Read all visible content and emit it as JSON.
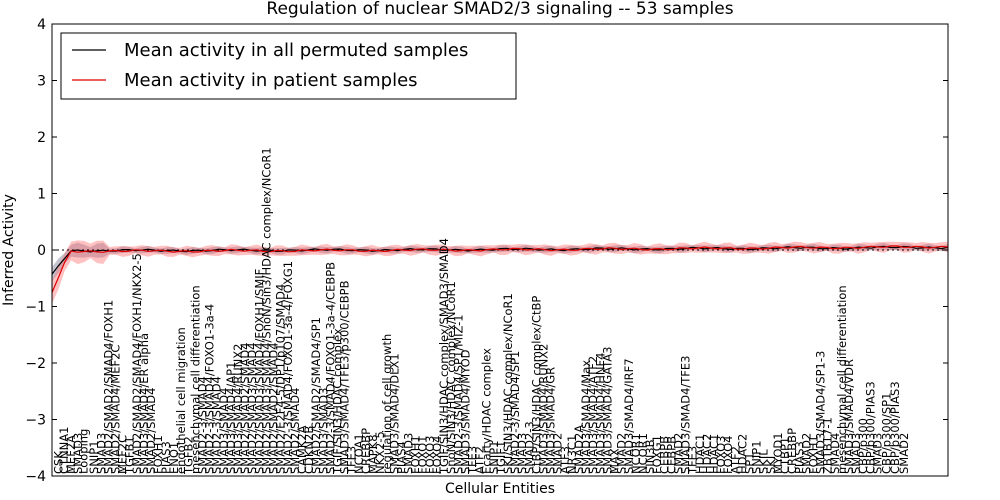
{
  "chart_data": {
    "type": "line",
    "title": "Regulation of nuclear SMAD2/3 signaling -- 53 samples",
    "xlabel": "Cellular Entities",
    "ylabel": "Inferred Activity",
    "ylim": [
      -4,
      4
    ],
    "yticks": [
      -4,
      -3,
      -2,
      -1,
      0,
      1,
      2,
      3,
      4
    ],
    "legend_position": "top-left",
    "series": [
      {
        "name": "Mean activity in all permuted samples",
        "color": "#000000",
        "start": -0.45,
        "mid": -0.01,
        "end": 0.05,
        "band": 0.05,
        "band_color": "#6b6b8a"
      },
      {
        "name": "Mean activity in patient samples",
        "color": "#e00000",
        "start": -0.75,
        "mid": -0.02,
        "end": 0.06,
        "band": 0.08,
        "band_color": "#ff6666"
      }
    ],
    "entity_labels": [
      {
        "pos": 0.003,
        "text": "CSK"
      },
      {
        "pos": 0.009,
        "text": "CTNNA1"
      },
      {
        "pos": 0.017,
        "text": "MEF2A"
      },
      {
        "pos": 0.025,
        "text": "SMAD3"
      },
      {
        "pos": 0.031,
        "text": "Looping"
      },
      {
        "pos": 0.043,
        "text": "SNIP1"
      },
      {
        "pos": 0.051,
        "text": "SMAD3"
      },
      {
        "pos": 0.059,
        "text": "SMAD2/SMAD2/SMAD4/FOXH1"
      },
      {
        "pos": 0.067,
        "text": "SMAD2/SMAD4/MEF2C"
      },
      {
        "pos": 0.075,
        "text": "MEF2C"
      },
      {
        "pos": 0.083,
        "text": "TGFB1"
      },
      {
        "pos": 0.091,
        "text": "SMAD2/SMAD2/SMAD4/FOXH1/NKX2-5"
      },
      {
        "pos": 0.099,
        "text": "SMAD3/SMAD4/ER alpha"
      },
      {
        "pos": 0.107,
        "text": "SMAD2/SMAD4"
      },
      {
        "pos": 0.115,
        "text": "FOXH1"
      },
      {
        "pos": 0.124,
        "text": "PIAS3"
      },
      {
        "pos": 0.133,
        "text": "ENO1"
      },
      {
        "pos": 0.141,
        "text": "endothelial cell migration"
      },
      {
        "pos": 0.149,
        "text": "TGFB2"
      },
      {
        "pos": 0.157,
        "text": "mesenchymal cell differentiation"
      },
      {
        "pos": 0.165,
        "text": "SMAD2-3/SMAD4"
      },
      {
        "pos": 0.173,
        "text": "SMAD2-3/SMAD4/FOXO1-3a-4"
      },
      {
        "pos": 0.181,
        "text": "SMAD2-3/SMAD4"
      },
      {
        "pos": 0.189,
        "text": "SMAD3/SMAD4"
      },
      {
        "pos": 0.197,
        "text": "SMAD3/SMAD4/AP1"
      },
      {
        "pos": 0.205,
        "text": "SMAD3/SMAD4/RUNX2"
      },
      {
        "pos": 0.213,
        "text": "SMAD2/SMAD2/SMAD4"
      },
      {
        "pos": 0.221,
        "text": "SMAD2/SMAD3/SMAD4"
      },
      {
        "pos": 0.229,
        "text": "SMAD2/SMAD3/SMAD4/FOXH1/SMIF"
      },
      {
        "pos": 0.237,
        "text": "SMAD2/SMAD3/SMAD4/SnoN/Sin3/HDAC complex/NCoR1"
      },
      {
        "pos": 0.245,
        "text": "SMAD2/SMAD2/SMAD4"
      },
      {
        "pos": 0.253,
        "text": "SMAD2/E2F4-5/DP1/p107/SMAD4"
      },
      {
        "pos": 0.261,
        "text": "SMAD2-3/SMAD4/FOXO1-3a-4/FOXG1"
      },
      {
        "pos": 0.269,
        "text": "SMAD2/SMAD4"
      },
      {
        "pos": 0.277,
        "text": "CAMK2A"
      },
      {
        "pos": 0.285,
        "text": "CDKN2B"
      },
      {
        "pos": 0.293,
        "text": "SMAD2/SMAD2/SMAD4/SP1"
      },
      {
        "pos": 0.301,
        "text": "SMAD3/SMAD3"
      },
      {
        "pos": 0.309,
        "text": "SMAD2-3/SMAD4/FOXO1-3a-4/CEBPB"
      },
      {
        "pos": 0.317,
        "text": "TGIF/SIN3/HDAC complex"
      },
      {
        "pos": 0.325,
        "text": "SMAD3/SMAD4/TFE3/p300/CEBPB"
      },
      {
        "pos": 0.333,
        "text": "TFE3"
      },
      {
        "pos": 0.341,
        "text": "NCOA1"
      },
      {
        "pos": 0.349,
        "text": "CREBBP"
      },
      {
        "pos": 0.357,
        "text": "MAPK8"
      },
      {
        "pos": 0.365,
        "text": "NKX2-5"
      },
      {
        "pos": 0.373,
        "text": "regulation of cell growth"
      },
      {
        "pos": 0.381,
        "text": "SMAD3/SMAD4/DLX1"
      },
      {
        "pos": 0.389,
        "text": "PIAS4"
      },
      {
        "pos": 0.397,
        "text": "SMAD3"
      },
      {
        "pos": 0.405,
        "text": "FOXH1"
      },
      {
        "pos": 0.413,
        "text": "FOXO1"
      },
      {
        "pos": 0.421,
        "text": "FOXO3"
      },
      {
        "pos": 0.429,
        "text": "FOXO4"
      },
      {
        "pos": 0.437,
        "text": "TGIF/SIN3/HDAC complex/SMAD3/SMAD4"
      },
      {
        "pos": 0.445,
        "text": "SnoN/SIN3/HDAC complex/NCoR1"
      },
      {
        "pos": 0.453,
        "text": "SMAD2-3/SMAD4/SP1/MIZ-1"
      },
      {
        "pos": 0.461,
        "text": "SMAD3/SMAD4/MYOD"
      },
      {
        "pos": 0.469,
        "text": "TFE3"
      },
      {
        "pos": 0.477,
        "text": "ATF2"
      },
      {
        "pos": 0.485,
        "text": "Ecarty/HDAC complex"
      },
      {
        "pos": 0.493,
        "text": "SNIP1"
      },
      {
        "pos": 0.501,
        "text": "TGIF1"
      },
      {
        "pos": 0.509,
        "text": "SKI/SIN3/HDAC complex/NCoR1"
      },
      {
        "pos": 0.517,
        "text": "SMAD2-3/SMAD4/SP1"
      },
      {
        "pos": 0.525,
        "text": "SMAD3"
      },
      {
        "pos": 0.533,
        "text": "SMAD2-3"
      },
      {
        "pos": 0.541,
        "text": "CtBP/SIN3/HDAC complex/CtBP"
      },
      {
        "pos": 0.549,
        "text": "SMAD3/SMAD4/RUNX2"
      },
      {
        "pos": 0.557,
        "text": "SMAD3/SMAD4/GR"
      },
      {
        "pos": 0.565,
        "text": "SMAD2"
      },
      {
        "pos": 0.573,
        "text": "ATF3"
      },
      {
        "pos": 0.581,
        "text": "NR3C1"
      },
      {
        "pos": 0.589,
        "text": "SMAD2A"
      },
      {
        "pos": 0.597,
        "text": "SMAD3/SMAD4/Max"
      },
      {
        "pos": 0.605,
        "text": "SMAD3/SMAD4/ATF2"
      },
      {
        "pos": 0.613,
        "text": "SMAD3/SMAD4/HNF4"
      },
      {
        "pos": 0.621,
        "text": "SMAD3/SMAD4/GATA3"
      },
      {
        "pos": 0.629,
        "text": "MAX"
      },
      {
        "pos": 0.637,
        "text": "SMAD2"
      },
      {
        "pos": 0.645,
        "text": "SMAD3/SMAD4/IRF7"
      },
      {
        "pos": 0.653,
        "text": "NCOR1"
      },
      {
        "pos": 0.661,
        "text": "NCOR1"
      },
      {
        "pos": 0.669,
        "text": "SIN3B"
      },
      {
        "pos": 0.677,
        "text": "FOXG1"
      },
      {
        "pos": 0.685,
        "text": "CEBPB"
      },
      {
        "pos": 0.693,
        "text": "CEBPB"
      },
      {
        "pos": 0.701,
        "text": "SMAD2"
      },
      {
        "pos": 0.709,
        "text": "SMAD3/SMAD4/TFE3"
      },
      {
        "pos": 0.717,
        "text": "TFE3"
      },
      {
        "pos": 0.725,
        "text": "HDAC1"
      },
      {
        "pos": 0.733,
        "text": "HDAC2"
      },
      {
        "pos": 0.741,
        "text": "HDAC1"
      },
      {
        "pos": 0.749,
        "text": "FOXO3"
      },
      {
        "pos": 0.757,
        "text": "FOXO4"
      },
      {
        "pos": 0.765,
        "text": "ATF2"
      },
      {
        "pos": 0.773,
        "text": "HDAC2"
      },
      {
        "pos": 0.781,
        "text": "SP1"
      },
      {
        "pos": 0.789,
        "text": "SNIP1"
      },
      {
        "pos": 0.797,
        "text": "SKIL"
      },
      {
        "pos": 0.805,
        "text": "SKI"
      },
      {
        "pos": 0.813,
        "text": "MYOD1"
      },
      {
        "pos": 0.821,
        "text": "CTBP1"
      },
      {
        "pos": 0.829,
        "text": "CREBBP"
      },
      {
        "pos": 0.837,
        "text": "PIAS3"
      },
      {
        "pos": 0.845,
        "text": "SMAD2"
      },
      {
        "pos": 0.853,
        "text": "FOXH1"
      },
      {
        "pos": 0.861,
        "text": "SMAD3/SMAD4/SP1-3"
      },
      {
        "pos": 0.869,
        "text": "ZBTB17-1"
      },
      {
        "pos": 0.877,
        "text": "SMAD4"
      },
      {
        "pos": 0.885,
        "text": "mesenchymal cell differentiation"
      },
      {
        "pos": 0.893,
        "text": "SMAD3/SMAD4/VDR"
      },
      {
        "pos": 0.901,
        "text": "SMAD3"
      },
      {
        "pos": 0.909,
        "text": "CBP/p300"
      },
      {
        "pos": 0.917,
        "text": "CBP/p300/PIAS3"
      },
      {
        "pos": 0.925,
        "text": "SMAD3"
      },
      {
        "pos": 0.935,
        "text": "CBP/p300/SP1"
      },
      {
        "pos": 0.945,
        "text": "CBP/p300/PIAS3"
      },
      {
        "pos": 0.955,
        "text": "SMAD2"
      }
    ]
  }
}
